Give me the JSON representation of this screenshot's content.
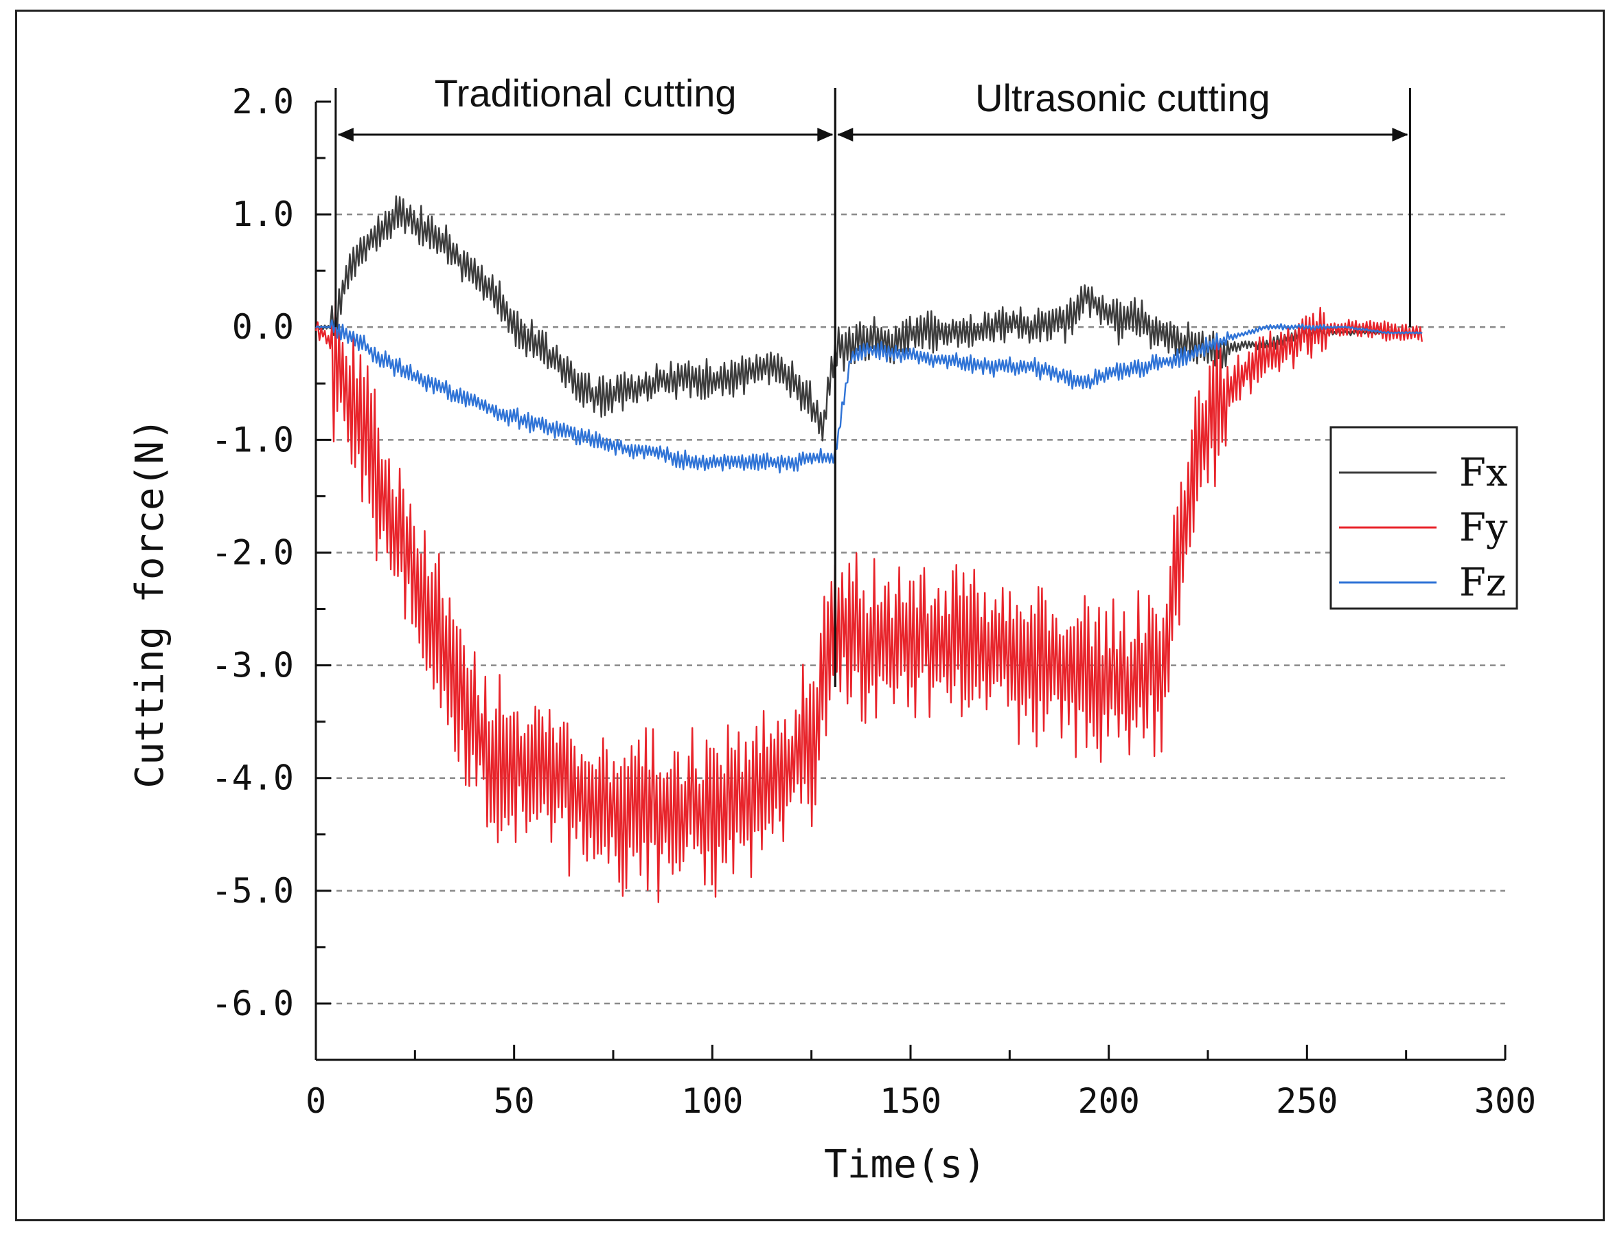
{
  "chart_data": {
    "type": "line",
    "title": "",
    "xlabel": "Time(s)",
    "ylabel": "Cutting force(N)",
    "xlim": [
      0,
      300
    ],
    "ylim": [
      -6.5,
      2.0
    ],
    "xticks": [
      0,
      50,
      100,
      150,
      200,
      250,
      300
    ],
    "xtick_labels": [
      "0",
      "50",
      "100",
      "150",
      "200",
      "250",
      "300"
    ],
    "yticks": [
      2.0,
      1.0,
      0.0,
      -1.0,
      -2.0,
      -3.0,
      -4.0,
      -5.0,
      -6.0
    ],
    "ytick_labels": [
      "2.0",
      "1.0",
      "0.0",
      "-1.0",
      "-2.0",
      "-3.0",
      "-4.0",
      "-5.0",
      "-6.0"
    ],
    "grid": "horizontal dashed",
    "legend_position": "right",
    "regions": [
      {
        "label": "Traditional cutting",
        "start": 5,
        "end": 131
      },
      {
        "label": "Ultrasonic cutting",
        "start": 131,
        "end": 276
      }
    ],
    "series": [
      {
        "name": "Fx",
        "color": "#3c3c3c",
        "x": [
          0,
          5,
          8,
          12,
          16,
          20,
          24,
          28,
          32,
          36,
          40,
          44,
          48,
          52,
          56,
          60,
          65,
          70,
          75,
          80,
          85,
          90,
          95,
          100,
          105,
          110,
          115,
          120,
          125,
          128,
          131,
          135,
          140,
          145,
          150,
          155,
          160,
          165,
          170,
          175,
          180,
          185,
          190,
          194,
          198,
          202,
          206,
          210,
          215,
          220,
          225,
          230,
          235,
          240,
          245,
          250,
          255,
          260,
          265,
          270,
          275,
          279
        ],
        "y": [
          0.0,
          0.0,
          0.5,
          0.7,
          0.85,
          1.0,
          0.95,
          0.85,
          0.75,
          0.6,
          0.45,
          0.35,
          0.1,
          -0.05,
          -0.15,
          -0.3,
          -0.45,
          -0.6,
          -0.6,
          -0.55,
          -0.5,
          -0.45,
          -0.45,
          -0.5,
          -0.45,
          -0.4,
          -0.35,
          -0.45,
          -0.7,
          -0.9,
          -0.2,
          -0.15,
          -0.1,
          -0.15,
          -0.05,
          -0.05,
          -0.05,
          -0.05,
          0.0,
          0.05,
          0.0,
          0.05,
          0.05,
          0.3,
          0.15,
          0.05,
          0.1,
          0.0,
          -0.1,
          -0.15,
          -0.2,
          -0.2,
          -0.15,
          -0.15,
          -0.1,
          -0.05,
          -0.05,
          -0.05,
          -0.05,
          -0.05,
          -0.05,
          -0.05
        ],
        "noise_amplitude": 0.22
      },
      {
        "name": "Fy",
        "color": "#e8242b",
        "x": [
          0,
          3,
          5,
          8,
          12,
          16,
          20,
          24,
          28,
          32,
          36,
          40,
          44,
          48,
          52,
          56,
          60,
          65,
          70,
          75,
          80,
          85,
          90,
          95,
          100,
          105,
          110,
          115,
          120,
          125,
          130,
          135,
          140,
          145,
          150,
          155,
          160,
          165,
          170,
          175,
          180,
          185,
          190,
          195,
          200,
          205,
          210,
          214,
          218,
          222,
          226,
          230,
          235,
          240,
          245,
          250,
          255,
          260,
          265,
          270,
          275,
          279
        ],
        "y": [
          0.0,
          -0.1,
          -0.3,
          -0.7,
          -1.0,
          -1.4,
          -1.8,
          -2.1,
          -2.5,
          -2.8,
          -3.2,
          -3.6,
          -3.8,
          -3.9,
          -3.9,
          -3.9,
          -4.0,
          -4.1,
          -4.2,
          -4.3,
          -4.3,
          -4.3,
          -4.3,
          -4.3,
          -4.3,
          -4.2,
          -4.2,
          -4.1,
          -3.9,
          -3.7,
          -2.6,
          -2.7,
          -2.8,
          -2.8,
          -2.8,
          -2.8,
          -2.85,
          -2.85,
          -2.9,
          -2.9,
          -2.95,
          -3.0,
          -3.1,
          -3.1,
          -3.1,
          -3.1,
          -3.05,
          -3.0,
          -2.0,
          -1.2,
          -0.8,
          -0.6,
          -0.4,
          -0.25,
          -0.15,
          -0.05,
          -0.02,
          0.0,
          -0.02,
          -0.03,
          -0.05,
          -0.05
        ],
        "noise_amplitude": 0.85
      },
      {
        "name": "Fz",
        "color": "#2f73d6",
        "x": [
          0,
          5,
          10,
          15,
          20,
          25,
          30,
          35,
          40,
          45,
          50,
          55,
          60,
          65,
          70,
          75,
          80,
          85,
          90,
          95,
          100,
          105,
          110,
          115,
          120,
          125,
          131,
          135,
          140,
          150,
          160,
          170,
          180,
          190,
          195,
          200,
          210,
          220,
          230,
          240,
          250,
          260,
          270,
          279
        ],
        "y": [
          0.0,
          0.0,
          -0.1,
          -0.25,
          -0.35,
          -0.45,
          -0.5,
          -0.6,
          -0.65,
          -0.75,
          -0.8,
          -0.85,
          -0.9,
          -0.95,
          -1.0,
          -1.05,
          -1.1,
          -1.1,
          -1.15,
          -1.2,
          -1.2,
          -1.2,
          -1.2,
          -1.2,
          -1.2,
          -1.15,
          -1.15,
          -0.25,
          -0.2,
          -0.25,
          -0.3,
          -0.35,
          -0.35,
          -0.45,
          -0.5,
          -0.4,
          -0.35,
          -0.25,
          -0.1,
          0.0,
          0.0,
          0.0,
          -0.05,
          -0.05
        ],
        "noise_amplitude": 0.1
      }
    ]
  }
}
